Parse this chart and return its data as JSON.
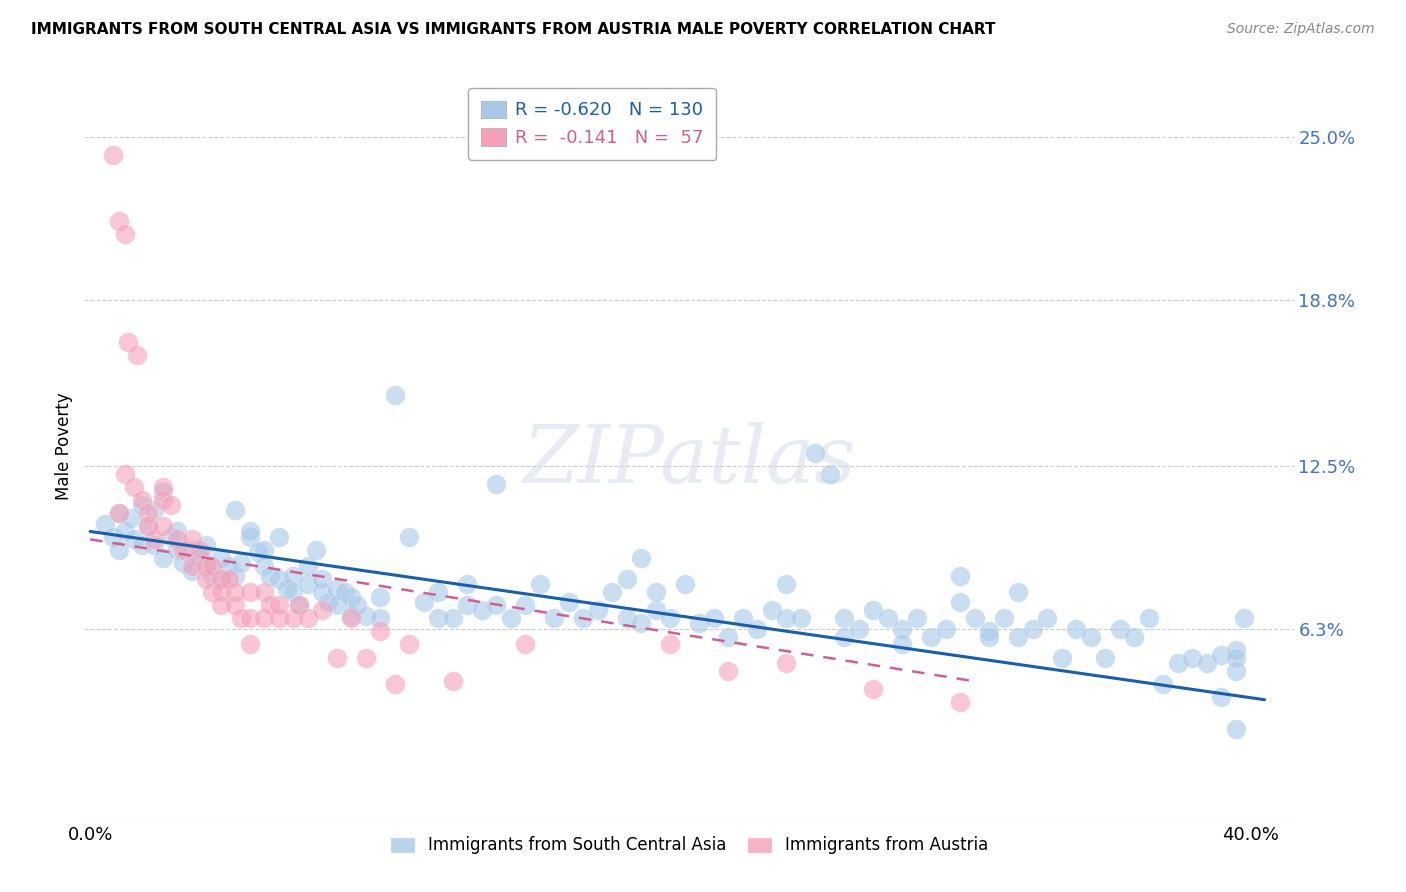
{
  "title": "IMMIGRANTS FROM SOUTH CENTRAL ASIA VS IMMIGRANTS FROM AUSTRIA MALE POVERTY CORRELATION CHART",
  "source": "Source: ZipAtlas.com",
  "ylabel": "Male Poverty",
  "ytick_labels": [
    "25.0%",
    "18.8%",
    "12.5%",
    "6.3%"
  ],
  "ytick_values": [
    0.25,
    0.188,
    0.125,
    0.063
  ],
  "xlim": [
    -0.002,
    0.415
  ],
  "ylim": [
    -0.01,
    0.275
  ],
  "color_blue": "#a8c8e8",
  "color_pink": "#f4a0b8",
  "trend_blue": "#1a5fa8",
  "trend_pink": "#d06090",
  "watermark": "ZIPatlas",
  "legend_line1_r": "R = -0.620",
  "legend_line1_n": "N = 130",
  "legend_line2_r": "R =  -0.141",
  "legend_line2_n": "N =  57",
  "scatter_blue": [
    [
      0.005,
      0.103
    ],
    [
      0.008,
      0.098
    ],
    [
      0.01,
      0.107
    ],
    [
      0.01,
      0.093
    ],
    [
      0.012,
      0.1
    ],
    [
      0.014,
      0.105
    ],
    [
      0.015,
      0.097
    ],
    [
      0.018,
      0.11
    ],
    [
      0.018,
      0.095
    ],
    [
      0.02,
      0.102
    ],
    [
      0.022,
      0.095
    ],
    [
      0.022,
      0.108
    ],
    [
      0.025,
      0.115
    ],
    [
      0.025,
      0.09
    ],
    [
      0.028,
      0.098
    ],
    [
      0.03,
      0.093
    ],
    [
      0.03,
      0.1
    ],
    [
      0.032,
      0.088
    ],
    [
      0.035,
      0.093
    ],
    [
      0.035,
      0.085
    ],
    [
      0.038,
      0.09
    ],
    [
      0.04,
      0.088
    ],
    [
      0.04,
      0.095
    ],
    [
      0.042,
      0.083
    ],
    [
      0.045,
      0.09
    ],
    [
      0.045,
      0.082
    ],
    [
      0.048,
      0.087
    ],
    [
      0.05,
      0.083
    ],
    [
      0.05,
      0.108
    ],
    [
      0.052,
      0.088
    ],
    [
      0.055,
      0.098
    ],
    [
      0.055,
      0.1
    ],
    [
      0.058,
      0.092
    ],
    [
      0.06,
      0.087
    ],
    [
      0.06,
      0.093
    ],
    [
      0.062,
      0.083
    ],
    [
      0.065,
      0.098
    ],
    [
      0.065,
      0.082
    ],
    [
      0.068,
      0.078
    ],
    [
      0.07,
      0.083
    ],
    [
      0.07,
      0.077
    ],
    [
      0.072,
      0.072
    ],
    [
      0.075,
      0.08
    ],
    [
      0.075,
      0.087
    ],
    [
      0.078,
      0.093
    ],
    [
      0.08,
      0.077
    ],
    [
      0.08,
      0.082
    ],
    [
      0.082,
      0.073
    ],
    [
      0.085,
      0.078
    ],
    [
      0.085,
      0.072
    ],
    [
      0.088,
      0.077
    ],
    [
      0.09,
      0.075
    ],
    [
      0.09,
      0.068
    ],
    [
      0.092,
      0.072
    ],
    [
      0.095,
      0.068
    ],
    [
      0.1,
      0.075
    ],
    [
      0.1,
      0.067
    ],
    [
      0.105,
      0.152
    ],
    [
      0.11,
      0.098
    ],
    [
      0.115,
      0.073
    ],
    [
      0.12,
      0.067
    ],
    [
      0.12,
      0.077
    ],
    [
      0.125,
      0.067
    ],
    [
      0.13,
      0.072
    ],
    [
      0.13,
      0.08
    ],
    [
      0.135,
      0.07
    ],
    [
      0.14,
      0.118
    ],
    [
      0.14,
      0.072
    ],
    [
      0.145,
      0.067
    ],
    [
      0.15,
      0.072
    ],
    [
      0.155,
      0.08
    ],
    [
      0.16,
      0.067
    ],
    [
      0.165,
      0.073
    ],
    [
      0.17,
      0.067
    ],
    [
      0.175,
      0.07
    ],
    [
      0.18,
      0.077
    ],
    [
      0.185,
      0.067
    ],
    [
      0.185,
      0.082
    ],
    [
      0.19,
      0.065
    ],
    [
      0.19,
      0.09
    ],
    [
      0.195,
      0.07
    ],
    [
      0.195,
      0.077
    ],
    [
      0.2,
      0.067
    ],
    [
      0.205,
      0.08
    ],
    [
      0.21,
      0.065
    ],
    [
      0.215,
      0.067
    ],
    [
      0.22,
      0.06
    ],
    [
      0.225,
      0.067
    ],
    [
      0.23,
      0.063
    ],
    [
      0.235,
      0.07
    ],
    [
      0.24,
      0.08
    ],
    [
      0.24,
      0.067
    ],
    [
      0.245,
      0.067
    ],
    [
      0.25,
      0.13
    ],
    [
      0.255,
      0.122
    ],
    [
      0.26,
      0.067
    ],
    [
      0.26,
      0.06
    ],
    [
      0.265,
      0.063
    ],
    [
      0.27,
      0.07
    ],
    [
      0.275,
      0.067
    ],
    [
      0.28,
      0.063
    ],
    [
      0.28,
      0.057
    ],
    [
      0.285,
      0.067
    ],
    [
      0.29,
      0.06
    ],
    [
      0.295,
      0.063
    ],
    [
      0.3,
      0.073
    ],
    [
      0.3,
      0.083
    ],
    [
      0.305,
      0.067
    ],
    [
      0.31,
      0.062
    ],
    [
      0.31,
      0.06
    ],
    [
      0.315,
      0.067
    ],
    [
      0.32,
      0.06
    ],
    [
      0.32,
      0.077
    ],
    [
      0.325,
      0.063
    ],
    [
      0.33,
      0.067
    ],
    [
      0.335,
      0.052
    ],
    [
      0.34,
      0.063
    ],
    [
      0.345,
      0.06
    ],
    [
      0.35,
      0.052
    ],
    [
      0.355,
      0.063
    ],
    [
      0.36,
      0.06
    ],
    [
      0.365,
      0.067
    ],
    [
      0.37,
      0.042
    ],
    [
      0.375,
      0.05
    ],
    [
      0.38,
      0.052
    ],
    [
      0.385,
      0.05
    ],
    [
      0.39,
      0.037
    ],
    [
      0.39,
      0.053
    ],
    [
      0.395,
      0.047
    ],
    [
      0.395,
      0.055
    ],
    [
      0.395,
      0.052
    ],
    [
      0.398,
      0.067
    ],
    [
      0.395,
      0.025
    ]
  ],
  "scatter_pink": [
    [
      0.008,
      0.243
    ],
    [
      0.01,
      0.218
    ],
    [
      0.012,
      0.213
    ],
    [
      0.013,
      0.172
    ],
    [
      0.016,
      0.167
    ],
    [
      0.01,
      0.107
    ],
    [
      0.012,
      0.122
    ],
    [
      0.015,
      0.117
    ],
    [
      0.018,
      0.112
    ],
    [
      0.02,
      0.107
    ],
    [
      0.02,
      0.102
    ],
    [
      0.022,
      0.097
    ],
    [
      0.025,
      0.102
    ],
    [
      0.025,
      0.112
    ],
    [
      0.025,
      0.117
    ],
    [
      0.028,
      0.11
    ],
    [
      0.03,
      0.097
    ],
    [
      0.032,
      0.093
    ],
    [
      0.035,
      0.097
    ],
    [
      0.035,
      0.087
    ],
    [
      0.038,
      0.093
    ],
    [
      0.04,
      0.087
    ],
    [
      0.04,
      0.082
    ],
    [
      0.042,
      0.087
    ],
    [
      0.042,
      0.077
    ],
    [
      0.045,
      0.082
    ],
    [
      0.045,
      0.077
    ],
    [
      0.045,
      0.072
    ],
    [
      0.048,
      0.082
    ],
    [
      0.05,
      0.077
    ],
    [
      0.05,
      0.072
    ],
    [
      0.052,
      0.067
    ],
    [
      0.055,
      0.077
    ],
    [
      0.055,
      0.067
    ],
    [
      0.055,
      0.057
    ],
    [
      0.06,
      0.077
    ],
    [
      0.06,
      0.067
    ],
    [
      0.062,
      0.072
    ],
    [
      0.065,
      0.067
    ],
    [
      0.065,
      0.072
    ],
    [
      0.07,
      0.067
    ],
    [
      0.072,
      0.072
    ],
    [
      0.075,
      0.067
    ],
    [
      0.08,
      0.07
    ],
    [
      0.085,
      0.052
    ],
    [
      0.09,
      0.067
    ],
    [
      0.095,
      0.052
    ],
    [
      0.1,
      0.062
    ],
    [
      0.105,
      0.042
    ],
    [
      0.11,
      0.057
    ],
    [
      0.125,
      0.043
    ],
    [
      0.15,
      0.057
    ],
    [
      0.2,
      0.057
    ],
    [
      0.22,
      0.047
    ],
    [
      0.24,
      0.05
    ],
    [
      0.27,
      0.04
    ],
    [
      0.3,
      0.035
    ]
  ],
  "trend_blue_x0": 0.0,
  "trend_blue_x1": 0.405,
  "trend_blue_y0": 0.1,
  "trend_blue_y1": 0.036,
  "trend_pink_x0": 0.0,
  "trend_pink_x1": 0.305,
  "trend_pink_y0": 0.097,
  "trend_pink_y1": 0.043
}
